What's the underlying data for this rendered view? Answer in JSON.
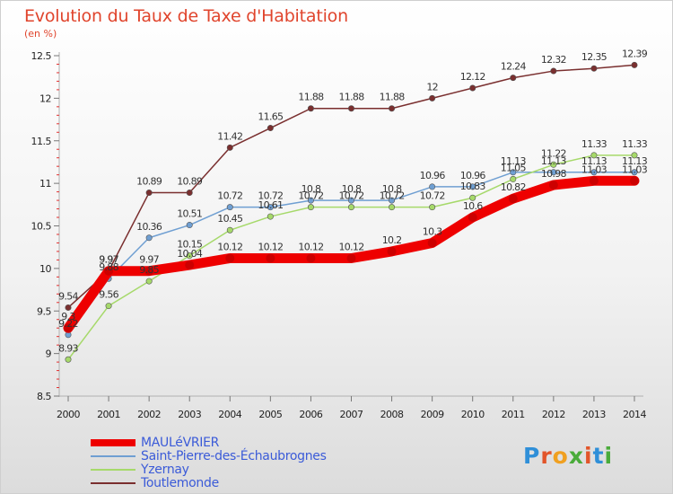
{
  "title": "Evolution du Taux de Taxe d'Habitation",
  "subtitle": "(en %)",
  "logo_text": "Proxiti",
  "chart_data": {
    "type": "line",
    "title": "Evolution du Taux de Taxe d'Habitation",
    "ylabel": "(en %)",
    "xlabel": "",
    "ylim": [
      8.5,
      12.5
    ],
    "yticks": [
      "8.5",
      "9",
      "9.5",
      "10",
      "10.5",
      "11",
      "11.5",
      "12",
      "12.5"
    ],
    "categories": [
      "2000",
      "2001",
      "2002",
      "2003",
      "2004",
      "2005",
      "2006",
      "2007",
      "2008",
      "2009",
      "2010",
      "2011",
      "2012",
      "2013",
      "2014"
    ],
    "grid": false,
    "legend_position": "bottom-left",
    "series": [
      {
        "name": "MAULéVRIER",
        "color": "#ee0000",
        "values": [
          9.3,
          9.97,
          9.97,
          10.04,
          10.12,
          10.12,
          10.12,
          10.12,
          10.2,
          10.3,
          10.6,
          10.82,
          10.98,
          11.03,
          11.03
        ],
        "labels": [
          "9.3",
          "9.97",
          "9.97",
          "10.04",
          "10.12",
          "10.12",
          "10.12",
          "10.12",
          "10.2",
          "10.3",
          "10.6",
          "10.82",
          "10.98",
          "11.03",
          "11.03"
        ]
      },
      {
        "name": "Saint-Pierre-des-Échaubrognes",
        "color": "#6f9fd2",
        "values": [
          9.22,
          9.88,
          10.36,
          10.51,
          10.72,
          10.72,
          10.8,
          10.8,
          10.8,
          10.96,
          10.96,
          11.13,
          11.13,
          11.13,
          11.13
        ],
        "labels": [
          "9.22",
          "9.88",
          "10.36",
          "10.51",
          "10.72",
          "10.72",
          "10.8",
          "10.8",
          "10.8",
          "10.96",
          "10.96",
          "11.13",
          "11.13",
          "11.13",
          "11.13"
        ]
      },
      {
        "name": "Yzernay",
        "color": "#a6d96a",
        "values": [
          8.93,
          9.56,
          9.85,
          10.15,
          10.45,
          10.61,
          10.72,
          10.72,
          10.72,
          10.72,
          10.83,
          11.05,
          11.22,
          11.33,
          11.33
        ],
        "labels": [
          "8.93",
          "9.56",
          "9.85",
          "10.15",
          "10.45",
          "10.61",
          "10.72",
          "10.72",
          "10.72",
          "10.72",
          "10.83",
          "11.05",
          "11.22",
          "11.33",
          "11.33"
        ]
      },
      {
        "name": "Toutlemonde",
        "color": "#7a2f2f",
        "values": [
          9.54,
          9.97,
          10.89,
          10.89,
          11.42,
          11.65,
          11.88,
          11.88,
          11.88,
          12.0,
          12.12,
          12.24,
          12.32,
          12.35,
          12.39
        ],
        "labels": [
          "9.54",
          "9.97",
          "10.89",
          "10.89",
          "11.42",
          "11.65",
          "11.88",
          "11.88",
          "11.88",
          "12",
          "12.12",
          "12.24",
          "12.32",
          "12.35",
          "12.39"
        ]
      }
    ]
  }
}
